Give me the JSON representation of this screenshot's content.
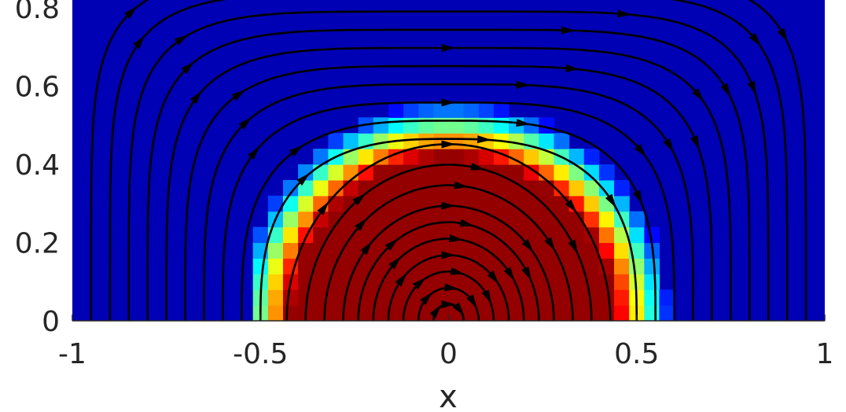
{
  "chart_data": {
    "type": "heatmap",
    "title": "",
    "xlabel": "x",
    "ylabel": "",
    "xlim": [
      -1,
      1
    ],
    "ylim": [
      0,
      0.85
    ],
    "x_ticks": [
      -1,
      -0.5,
      0,
      0.5,
      1
    ],
    "y_ticks": [
      0,
      0.2,
      0.4,
      0.6,
      0.8
    ],
    "x_tick_labels": [
      "-1",
      "-0.5",
      "0",
      "0.5",
      "1"
    ],
    "y_tick_labels": [
      "0",
      "0.2",
      "0.4",
      "0.6",
      "0.8"
    ],
    "grid": false,
    "colormap": "jet",
    "colors": {
      "background_low": "#0000b4",
      "high": "#8b0000"
    },
    "field": {
      "description_free": true,
      "center": [
        0,
        0
      ],
      "core_radius": 0.42,
      "edge_radius": 0.56,
      "cell_size": 0.04
    },
    "streamlines": {
      "center": [
        0,
        0
      ],
      "radii": [
        0.04,
        0.08,
        0.12,
        0.16,
        0.2,
        0.24,
        0.28,
        0.33,
        0.38,
        0.43,
        0.5,
        0.55,
        0.6,
        0.65,
        0.7,
        0.75,
        0.8,
        0.85,
        0.9,
        0.95
      ],
      "rect_exponent_inner": 2,
      "rect_exponent_outer": 6
    }
  }
}
